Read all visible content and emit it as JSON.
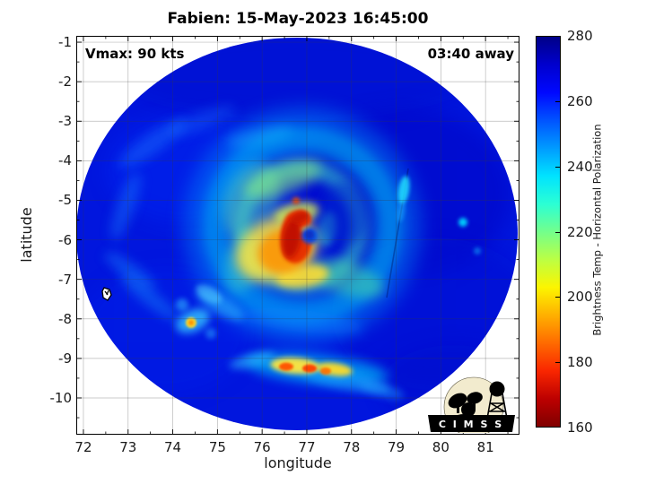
{
  "figure": {
    "annotations": {
      "vmax": "Vmax: 90 kts",
      "eta": "03:40 away"
    },
    "logo_text": "C I M S S"
  },
  "chart_data": {
    "type": "heatmap",
    "title": "Fabien: 15-May-2023 16:45:00",
    "storm": {
      "name": "Fabien",
      "datetime": "15-May-2023 16:45:00",
      "vmax_kts": 90,
      "time_away": "03:40"
    },
    "xlabel": "longitude",
    "ylabel": "latitude",
    "xlim": [
      71.84,
      81.76
    ],
    "ylim": [
      -10.93,
      -0.84
    ],
    "x_ticks": [
      72,
      73,
      74,
      75,
      76,
      77,
      78,
      79,
      80,
      81
    ],
    "y_ticks": [
      -1,
      -2,
      -3,
      -4,
      -5,
      -6,
      -7,
      -8,
      -9,
      -10
    ],
    "minor_tick_step": 0.5,
    "grid": true,
    "colorbar": {
      "label": "Brightness Temp - Horizontal Polarization",
      "min": 160,
      "max": 280,
      "ticks": [
        280,
        260,
        240,
        220,
        200,
        180,
        160
      ],
      "colors_top_to_bottom": [
        "#000087",
        "#0000CD",
        "#0008FF",
        "#0053FF",
        "#009BFF",
        "#00E3FF",
        "#2BFFD4",
        "#73FF8C",
        "#BBFF44",
        "#FCF500",
        "#FFB000",
        "#FF6A00",
        "#F92600",
        "#BC0000",
        "#800000"
      ]
    },
    "field_summary": {
      "background_tb_k": 262,
      "swath_extent": {
        "lon": [
          71.9,
          81.7
        ],
        "lat": [
          -10.8,
          -0.9
        ]
      },
      "features": [
        {
          "name": "eye",
          "lon": 76.9,
          "lat": -5.85,
          "tb_k": 250
        },
        {
          "name": "eyewall-hook-min-tb",
          "lon": 76.6,
          "lat": -5.8,
          "tb_k": 165
        },
        {
          "name": "inner-core-warm-ring",
          "lon": 76.4,
          "lat": -6.0,
          "tb_k": 200
        },
        {
          "name": "moat-cyan-annulus",
          "lon": 76.8,
          "lat": -5.8,
          "radius_deg": 2.0,
          "tb_k": 235
        },
        {
          "name": "southern-rainband",
          "lon_range": [
            75.8,
            77.6
          ],
          "lat": -9.2,
          "tb_k_min": 185
        },
        {
          "name": "isolated-cell",
          "lon": 74.4,
          "lat": -8.1,
          "tb_k": 205
        },
        {
          "name": "scan-seam",
          "from_lonlat": [
            79.3,
            -4.3
          ],
          "to_lonlat": [
            78.8,
            -7.3
          ]
        },
        {
          "name": "small-island-marker",
          "lon": 72.4,
          "lat": -7.3
        }
      ]
    }
  }
}
